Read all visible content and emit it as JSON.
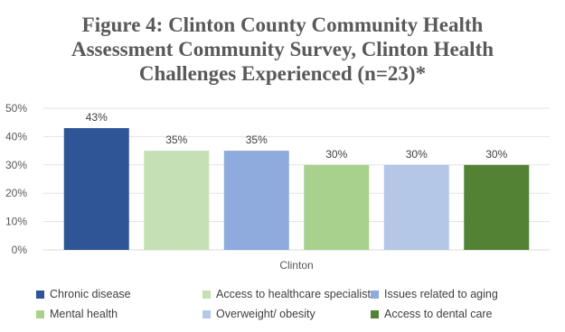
{
  "chart_data": {
    "type": "bar",
    "title_lines": [
      "Figure 4: Clinton County Community Health",
      "Assessment Community Survey, Clinton Health",
      "Challenges Experienced (n=23)*"
    ],
    "xlabel": "",
    "ylabel": "",
    "categories": [
      "Clinton"
    ],
    "ylim": [
      0,
      50
    ],
    "yticks": [
      "0%",
      "10%",
      "20%",
      "30%",
      "40%",
      "50%"
    ],
    "grid": true,
    "legend_position": "bottom",
    "series": [
      {
        "name": "Chronic disease",
        "values": [
          43
        ],
        "label": "43%",
        "color": "#2F5597"
      },
      {
        "name": "Access to healthcare specialist",
        "values": [
          35
        ],
        "label": "35%",
        "color": "#C5E0B4"
      },
      {
        "name": "Issues related to aging",
        "values": [
          35
        ],
        "label": "35%",
        "color": "#8FAADC"
      },
      {
        "name": "Mental health",
        "values": [
          30
        ],
        "label": "30%",
        "color": "#A9D18E"
      },
      {
        "name": "Overweight/ obesity",
        "values": [
          30
        ],
        "label": "30%",
        "color": "#B4C7E7"
      },
      {
        "name": "Access to dental care",
        "values": [
          30
        ],
        "label": "30%",
        "color": "#548235"
      }
    ]
  }
}
